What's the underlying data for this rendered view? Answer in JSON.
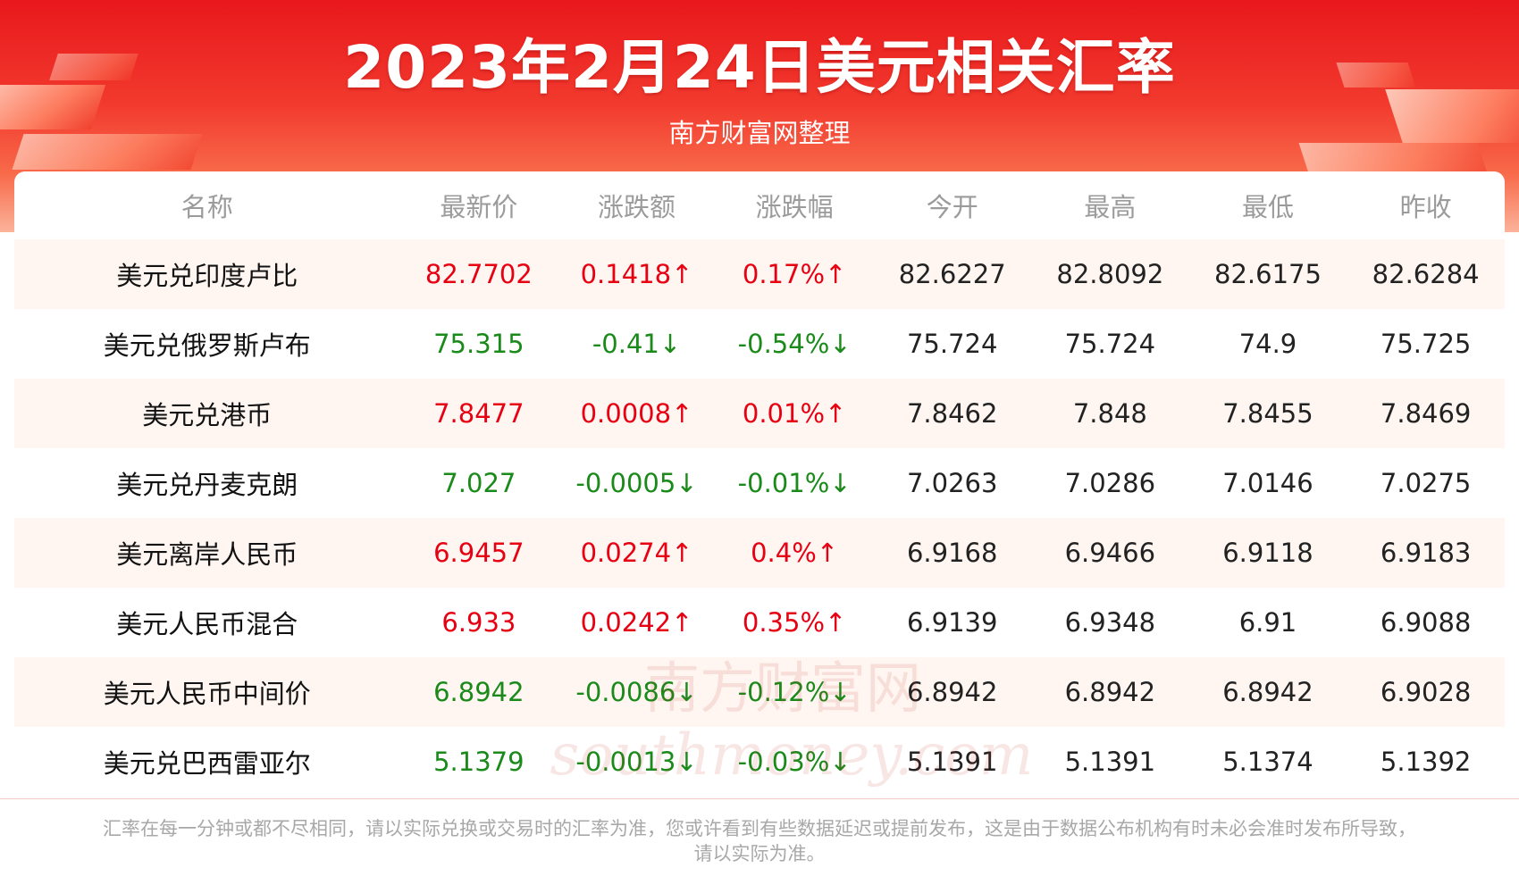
{
  "header": {
    "title": "2023年2月24日美元相关汇率",
    "subtitle": "南方财富网整理"
  },
  "table": {
    "columns": [
      "名称",
      "最新价",
      "涨跌额",
      "涨跌幅",
      "今开",
      "最高",
      "最低",
      "昨收"
    ],
    "rows": [
      {
        "name": "美元兑印度卢比",
        "latest": "82.7702",
        "change": "0.1418↑",
        "pct": "0.17%↑",
        "open": "82.6227",
        "high": "82.8092",
        "low": "82.6175",
        "prev": "82.6284",
        "direction": "up"
      },
      {
        "name": "美元兑俄罗斯卢布",
        "latest": "75.315",
        "change": "-0.41↓",
        "pct": "-0.54%↓",
        "open": "75.724",
        "high": "75.724",
        "low": "74.9",
        "prev": "75.725",
        "direction": "down"
      },
      {
        "name": "美元兑港币",
        "latest": "7.8477",
        "change": "0.0008↑",
        "pct": "0.01%↑",
        "open": "7.8462",
        "high": "7.848",
        "low": "7.8455",
        "prev": "7.8469",
        "direction": "up"
      },
      {
        "name": "美元兑丹麦克朗",
        "latest": "7.027",
        "change": "-0.0005↓",
        "pct": "-0.01%↓",
        "open": "7.0263",
        "high": "7.0286",
        "low": "7.0146",
        "prev": "7.0275",
        "direction": "down"
      },
      {
        "name": "美元离岸人民币",
        "latest": "6.9457",
        "change": "0.0274↑",
        "pct": "0.4%↑",
        "open": "6.9168",
        "high": "6.9466",
        "low": "6.9118",
        "prev": "6.9183",
        "direction": "up"
      },
      {
        "name": "美元人民币混合",
        "latest": "6.933",
        "change": "0.0242↑",
        "pct": "0.35%↑",
        "open": "6.9139",
        "high": "6.9348",
        "low": "6.91",
        "prev": "6.9088",
        "direction": "up"
      },
      {
        "name": "美元人民币中间价",
        "latest": "6.8942",
        "change": "-0.0086↓",
        "pct": "-0.12%↓",
        "open": "6.8942",
        "high": "6.8942",
        "low": "6.8942",
        "prev": "6.9028",
        "direction": "down"
      },
      {
        "name": "美元兑巴西雷亚尔",
        "latest": "5.1379",
        "change": "-0.0013↓",
        "pct": "-0.03%↓",
        "open": "5.1391",
        "high": "5.1391",
        "low": "5.1374",
        "prev": "5.1392",
        "direction": "down"
      }
    ]
  },
  "watermark": {
    "cn": "南方财富网",
    "en": "southmoney.com"
  },
  "footer": {
    "line1": "汇率在每一分钟或都不尽相同，请以实际兑换或交易时的汇率为准，您或许看到有些数据延迟或提前发布，这是由于数据公布机构有时未必会准时发布所导致，",
    "line2": "请以实际为准。"
  },
  "colors": {
    "up": "#e60012",
    "down": "#1a8a1a",
    "header_red": "#e8181c"
  }
}
